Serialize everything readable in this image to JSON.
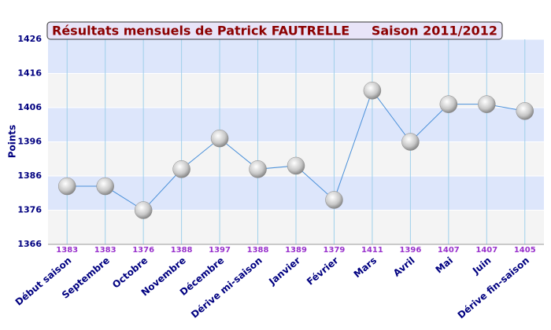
{
  "chart_data": {
    "type": "line",
    "title": "Résultats mensuels de  Patrick FAUTRELLE",
    "subtitle": "Saison 2011/2012",
    "y_label": "Points",
    "categories": [
      "Début saison",
      "Septembre",
      "Octobre",
      "Novembre",
      "Décembre",
      "Dérive mi-saison",
      "Janvier",
      "Février",
      "Mars",
      "Avril",
      "Mai",
      "Juin",
      "Dérive fin-saison"
    ],
    "series": [
      {
        "color": "#4a90d9",
        "values": [
          1383,
          1383,
          1376,
          1388,
          1397,
          1388,
          1389,
          1379,
          1411,
          1396,
          1407,
          1407,
          1405
        ]
      }
    ],
    "ylim": [
      1366,
      1426
    ],
    "yticks": [
      1366,
      1376,
      1386,
      1396,
      1406,
      1416,
      1426
    ],
    "grid": true
  }
}
